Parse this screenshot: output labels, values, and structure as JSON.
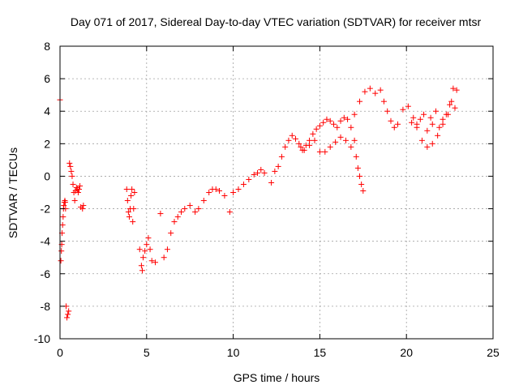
{
  "chart_data": {
    "type": "scatter",
    "title": "Day 071 of 2017, Sidereal Day-to-day VTEC variation (SDTVAR) for receiver mtsr",
    "xlabel": "GPS time / hours",
    "ylabel": "SDTVAR / TECUs",
    "xlim": [
      0,
      25
    ],
    "ylim": [
      -10,
      8
    ],
    "xticks": [
      0,
      5,
      10,
      15,
      20,
      25
    ],
    "yticks": [
      -10,
      -8,
      -6,
      -4,
      -2,
      0,
      2,
      4,
      6,
      8
    ],
    "grid": true,
    "marker": "plus",
    "color": "#ff0000",
    "series": [
      {
        "name": "SDTVAR",
        "x": [
          0.0,
          0.05,
          0.08,
          0.1,
          0.12,
          0.15,
          0.18,
          0.2,
          0.22,
          0.25,
          0.28,
          0.3,
          0.32,
          0.35,
          0.4,
          0.45,
          0.5,
          0.55,
          0.6,
          0.65,
          0.7,
          0.75,
          0.8,
          0.85,
          0.9,
          0.95,
          1.0,
          1.05,
          1.1,
          1.15,
          1.2,
          1.3,
          1.35,
          3.85,
          3.9,
          3.95,
          4.0,
          4.05,
          4.1,
          4.15,
          4.2,
          4.25,
          4.3,
          4.6,
          4.7,
          4.75,
          4.8,
          4.9,
          5.0,
          5.1,
          5.2,
          5.3,
          5.5,
          5.8,
          6.0,
          6.2,
          6.4,
          6.6,
          6.8,
          7.0,
          7.2,
          7.5,
          7.8,
          8.0,
          8.3,
          8.6,
          8.8,
          9.0,
          9.2,
          9.5,
          9.8,
          10.0,
          10.3,
          10.6,
          10.9,
          11.2,
          11.4,
          11.6,
          11.8,
          12.2,
          12.4,
          12.6,
          12.8,
          13.0,
          13.2,
          13.4,
          13.6,
          13.8,
          14.0,
          14.2,
          14.4,
          14.6,
          14.8,
          15.0,
          15.2,
          15.4,
          15.6,
          15.8,
          16.0,
          16.2,
          16.4,
          16.6,
          16.8,
          17.0,
          17.1,
          17.2,
          17.3,
          17.4,
          17.5,
          13.9,
          14.1,
          14.4,
          14.7,
          15.0,
          15.3,
          15.6,
          15.9,
          16.2,
          16.5,
          16.8,
          17.0,
          17.3,
          17.6,
          17.9,
          18.2,
          18.5,
          18.7,
          18.9,
          19.1,
          19.3,
          19.5,
          19.8,
          20.1,
          20.4,
          20.6,
          20.8,
          21.0,
          21.2,
          21.4,
          21.5,
          21.7,
          21.9,
          22.1,
          22.3,
          22.5,
          22.7,
          22.9,
          20.3,
          20.6,
          20.9,
          21.2,
          21.5,
          21.8,
          22.1,
          22.4,
          22.6,
          22.8
        ],
        "y": [
          4.7,
          -5.2,
          -4.6,
          -4.2,
          -3.5,
          -3.0,
          -2.5,
          -2.0,
          -1.8,
          -1.6,
          -1.5,
          -1.6,
          -2.0,
          -8.0,
          -8.7,
          -8.5,
          -8.3,
          0.8,
          0.6,
          0.3,
          0.0,
          -0.5,
          -1.0,
          -1.5,
          -0.9,
          -0.7,
          -0.8,
          -1.0,
          -0.8,
          -0.6,
          -1.9,
          -2.0,
          -1.8,
          -0.8,
          -1.5,
          -2.2,
          -2.5,
          -2.0,
          -1.2,
          -0.8,
          -2.8,
          -2.0,
          -1.0,
          -4.5,
          -5.5,
          -5.8,
          -5.0,
          -4.6,
          -4.2,
          -3.8,
          -4.5,
          -5.2,
          -5.3,
          -2.3,
          -5.0,
          -4.5,
          -3.5,
          -2.8,
          -2.5,
          -2.2,
          -2.0,
          -1.8,
          -2.2,
          -2.0,
          -1.5,
          -1.0,
          -0.8,
          -0.8,
          -0.9,
          -1.2,
          -2.2,
          -1.0,
          -0.8,
          -0.5,
          -0.2,
          0.1,
          0.2,
          0.4,
          0.2,
          -0.4,
          0.3,
          0.6,
          1.2,
          1.8,
          2.2,
          2.5,
          2.3,
          2.0,
          1.6,
          1.9,
          2.2,
          2.6,
          2.9,
          3.1,
          3.3,
          3.5,
          3.4,
          3.2,
          3.0,
          3.4,
          3.6,
          3.5,
          3.0,
          2.2,
          1.2,
          0.5,
          0.0,
          -0.5,
          -0.9,
          1.8,
          1.6,
          1.9,
          2.2,
          1.5,
          1.5,
          1.8,
          2.1,
          2.4,
          2.2,
          1.8,
          3.8,
          4.6,
          5.2,
          5.4,
          5.1,
          5.3,
          4.6,
          4.0,
          3.4,
          3.0,
          3.2,
          4.1,
          4.3,
          3.6,
          3.2,
          3.5,
          3.8,
          2.8,
          3.6,
          3.2,
          4.0,
          3.0,
          3.2,
          3.8,
          4.4,
          5.4,
          5.3,
          3.3,
          3.0,
          2.2,
          1.8,
          2.0,
          2.5,
          3.5,
          3.8,
          4.6,
          4.2
        ]
      }
    ]
  }
}
